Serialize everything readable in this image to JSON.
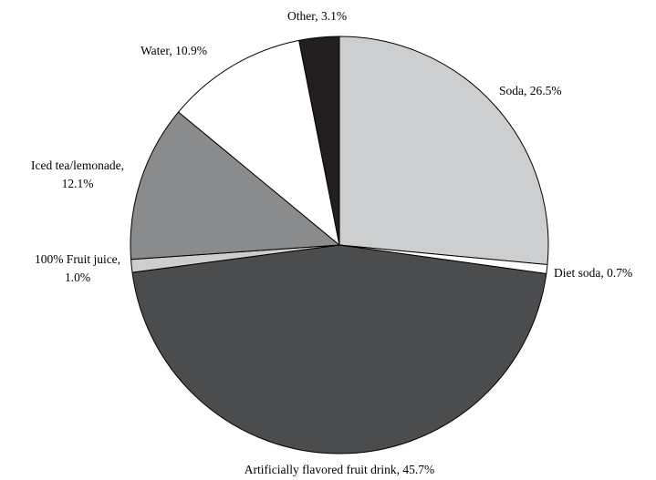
{
  "chart_data": {
    "type": "pie",
    "start": "12 o'clock",
    "direction": "clockwise",
    "slices": [
      {
        "label": "Soda, 26.5%",
        "value": 26.5,
        "color": "#cdced0"
      },
      {
        "label": "Diet soda, 0.7%",
        "value": 0.7,
        "color": "#ffffff"
      },
      {
        "label": "Artificially flavored fruit drink, 45.7%",
        "value": 45.7,
        "color": "#4b4c4e"
      },
      {
        "label": "100% Fruit juice, 1.0%",
        "value": 1.0,
        "color": "#cdced0"
      },
      {
        "label": "Iced tea/lemonade, 12.1%",
        "value": 12.1,
        "color": "#8a8b8d"
      },
      {
        "label": "Water, 10.9%",
        "value": 10.9,
        "color": "#ffffff"
      },
      {
        "label": "Other, 3.1%",
        "value": 3.1,
        "color": "#231f20"
      }
    ],
    "label_lines": [
      [
        "Soda, 26.5%"
      ],
      [
        "Diet soda, 0.7%"
      ],
      [
        "Artificially flavored fruit drink, 45.7%"
      ],
      [
        "100% Fruit juice,",
        "1.0%"
      ],
      [
        "Iced tea/lemonade,",
        "12.1%"
      ],
      [
        "Water, 10.9%"
      ],
      [
        "Other, 3.1%"
      ]
    ]
  }
}
